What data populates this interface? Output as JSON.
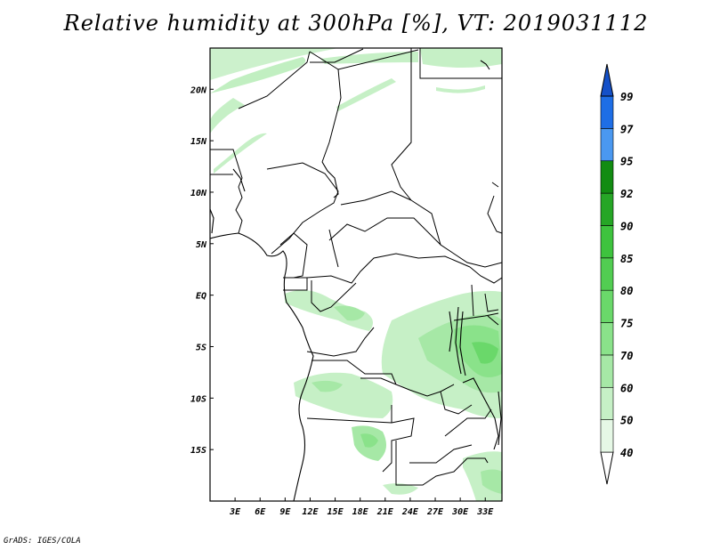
{
  "title": "Relative humidity at 300hPa [%], VT: 2019031112",
  "footer": "GrADS: IGES/COLA",
  "map": {
    "lon_range": [
      0,
      35
    ],
    "lat_range": [
      -20,
      24
    ],
    "lat_ticks": [
      {
        "lat": 20,
        "label": "20N"
      },
      {
        "lat": 15,
        "label": "15N"
      },
      {
        "lat": 10,
        "label": "10N"
      },
      {
        "lat": 5,
        "label": "5N"
      },
      {
        "lat": 0,
        "label": "EQ"
      },
      {
        "lat": -5,
        "label": "5S"
      },
      {
        "lat": -10,
        "label": "10S"
      },
      {
        "lat": -15,
        "label": "15S"
      }
    ],
    "lon_ticks": [
      {
        "lon": 3,
        "label": "3E"
      },
      {
        "lon": 6,
        "label": "6E"
      },
      {
        "lon": 9,
        "label": "9E"
      },
      {
        "lon": 12,
        "label": "12E"
      },
      {
        "lon": 15,
        "label": "15E"
      },
      {
        "lon": 18,
        "label": "18E"
      },
      {
        "lon": 21,
        "label": "21E"
      },
      {
        "lon": 24,
        "label": "24E"
      },
      {
        "lon": 27,
        "label": "27E"
      },
      {
        "lon": 30,
        "label": "30E"
      },
      {
        "lon": 33,
        "label": "33E"
      }
    ]
  },
  "colorbar": {
    "levels": [
      "40",
      "50",
      "60",
      "70",
      "75",
      "80",
      "85",
      "90",
      "92",
      "95",
      "97",
      "99"
    ],
    "colors": [
      "#e6f8e6",
      "#c6f0c6",
      "#a6e8a6",
      "#8ae28a",
      "#6ad86a",
      "#52cd52",
      "#3ec33e",
      "#26a626",
      "#128c12",
      "#4a98f0",
      "#1e6ee6",
      "#1450c8"
    ]
  }
}
